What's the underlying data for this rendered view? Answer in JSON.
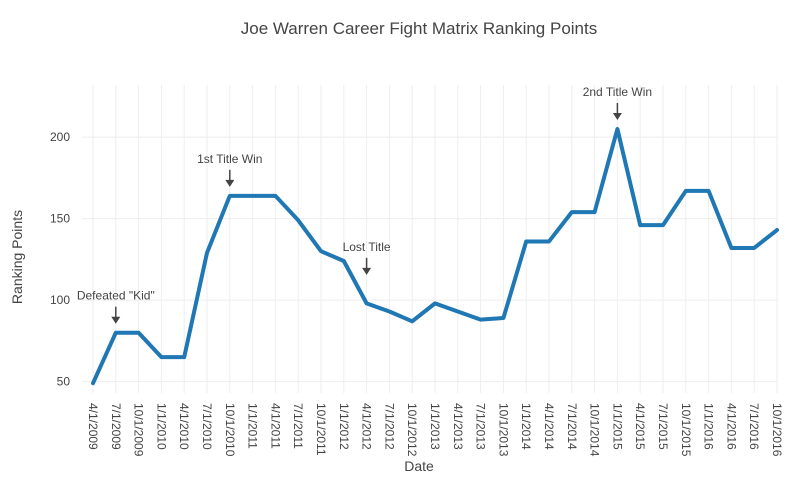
{
  "chart_data": {
    "type": "line",
    "title": "Joe Warren Career Fight Matrix Ranking Points",
    "xlabel": "Date",
    "ylabel": "Ranking Points",
    "grid": true,
    "ylim": [
      43,
      232
    ],
    "yticks": [
      50,
      100,
      150,
      200
    ],
    "xticks": [
      "4/1/2009",
      "7/1/2009",
      "10/1/2009",
      "1/1/2010",
      "4/1/2010",
      "7/1/2010",
      "10/1/2010",
      "1/1/2011",
      "4/1/2011",
      "7/1/2011",
      "10/1/2011",
      "1/1/2012",
      "4/1/2012",
      "7/1/2012",
      "10/1/2012",
      "1/1/2013",
      "4/1/2013",
      "7/1/2013",
      "10/1/2013",
      "1/1/2014",
      "4/1/2014",
      "7/1/2014",
      "10/1/2014",
      "1/1/2015",
      "4/1/2015",
      "7/1/2015",
      "10/1/2015",
      "1/1/2016",
      "4/1/2016",
      "7/1/2016",
      "10/1/2016"
    ],
    "series": [
      {
        "color": "#1f77b4",
        "x": [
          "4/1/2009",
          "7/1/2009",
          "10/1/2009",
          "1/1/2010",
          "4/1/2010",
          "7/1/2010",
          "10/1/2010",
          "1/1/2011",
          "4/1/2011",
          "7/1/2011",
          "10/1/2011",
          "1/1/2012",
          "4/1/2012",
          "7/1/2012",
          "10/1/2012",
          "1/1/2013",
          "4/1/2013",
          "7/1/2013",
          "10/1/2013",
          "1/1/2014",
          "4/1/2014",
          "7/1/2014",
          "10/1/2014",
          "1/1/2015",
          "4/1/2015",
          "7/1/2015",
          "10/1/2015",
          "1/1/2016",
          "4/1/2016",
          "7/1/2016",
          "10/1/2016"
        ],
        "values": [
          49,
          80,
          80,
          65,
          65,
          129,
          164,
          164,
          164,
          149,
          130,
          124,
          98,
          93,
          87,
          98,
          93,
          88,
          89,
          136,
          136,
          154,
          154,
          205,
          146,
          146,
          167,
          167,
          132,
          132,
          143
        ]
      }
    ],
    "annotations": [
      {
        "text": "Defeated \"Kid\"",
        "x": "7/1/2009",
        "y": 80
      },
      {
        "text": "1st Title Win",
        "x": "10/1/2010",
        "y": 164
      },
      {
        "text": "Lost Title",
        "x": "4/1/2012",
        "y": 110
      },
      {
        "text": "2nd Title Win",
        "x": "1/1/2015",
        "y": 205
      }
    ]
  }
}
